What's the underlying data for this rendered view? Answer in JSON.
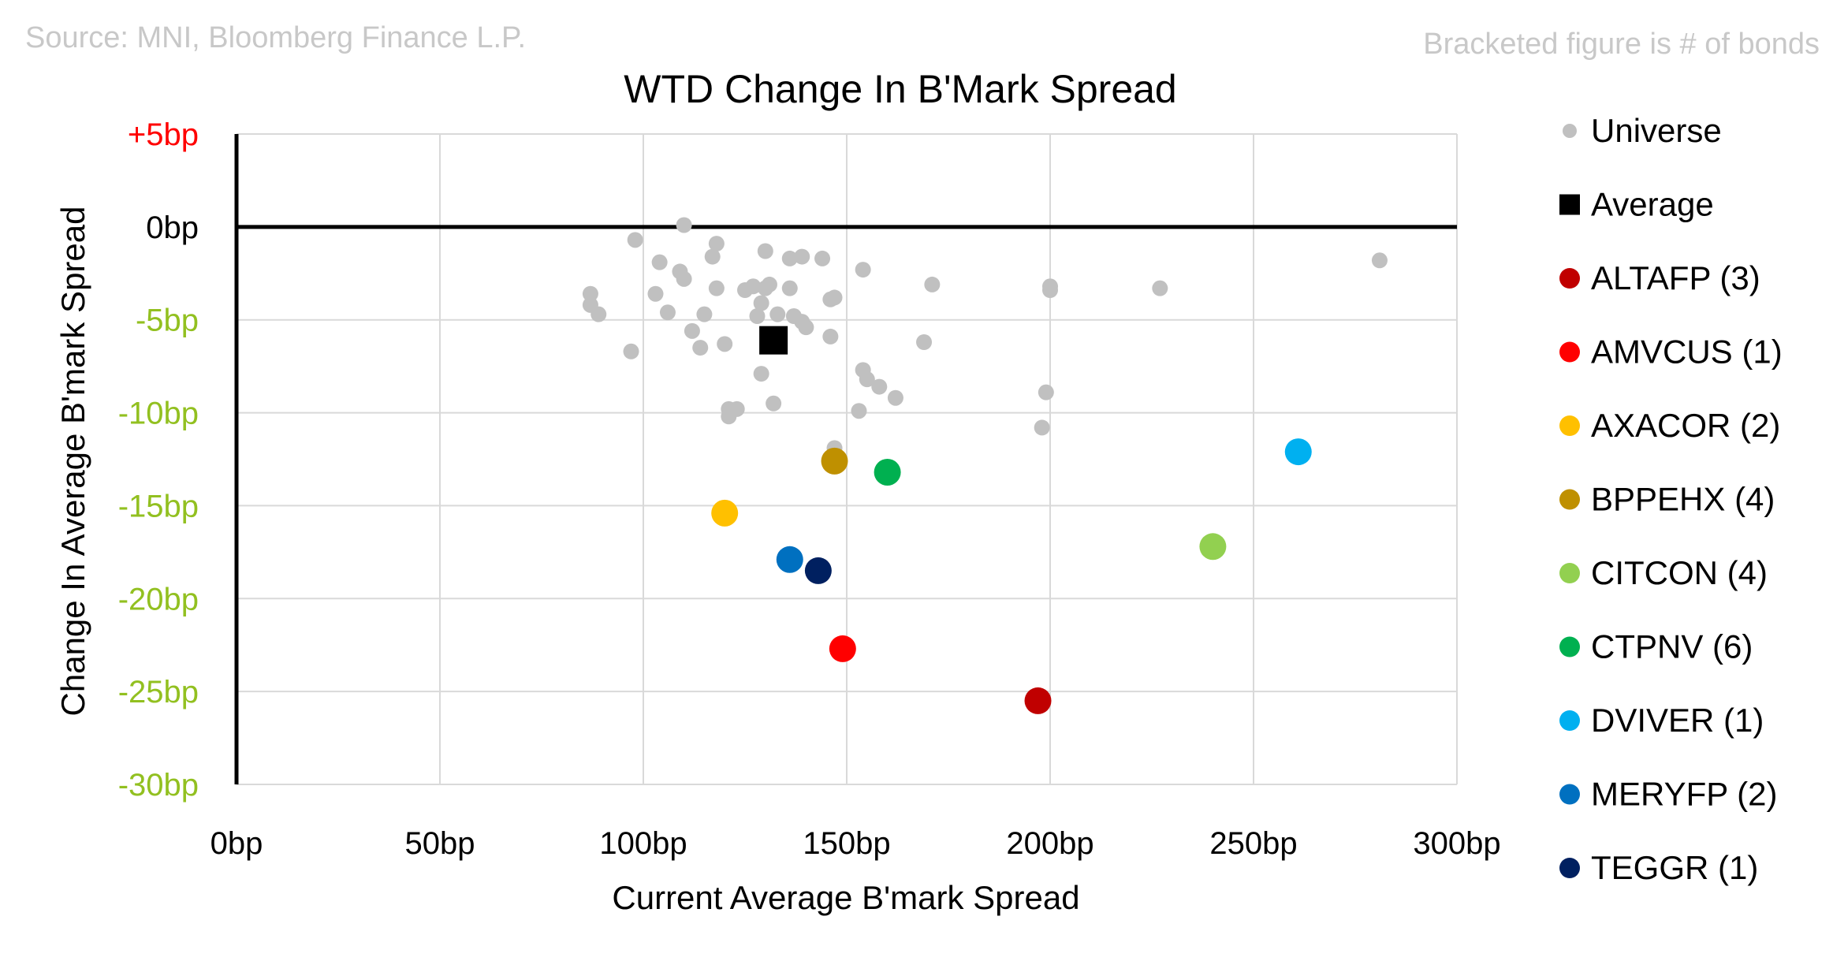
{
  "source_note": "Source: MNI, Bloomberg Finance L.P.",
  "bracket_note": "Bracketed figure is # of bonds",
  "colors": {
    "universe": "#c0c0c0",
    "average": "#000000",
    "positive_tick": "#ff0000",
    "zero_tick": "#000000",
    "negative_tick": "#92c020",
    "grid": "#d9d9d9"
  },
  "chart_data": {
    "type": "scatter",
    "title": "WTD Change In B'Mark Spread",
    "xlabel": "Current Average B'mark Spread",
    "ylabel": "Change In Average B'mark Spread",
    "xlim": [
      0,
      300
    ],
    "ylim": [
      -30,
      5
    ],
    "x_ticks": [
      {
        "value": 0,
        "label": "0bp"
      },
      {
        "value": 50,
        "label": "50bp"
      },
      {
        "value": 100,
        "label": "100bp"
      },
      {
        "value": 150,
        "label": "150bp"
      },
      {
        "value": 200,
        "label": "200bp"
      },
      {
        "value": 250,
        "label": "250bp"
      },
      {
        "value": 300,
        "label": "300bp"
      }
    ],
    "y_ticks": [
      {
        "value": 5,
        "label": "+5bp"
      },
      {
        "value": 0,
        "label": "0bp"
      },
      {
        "value": -5,
        "label": "-5bp"
      },
      {
        "value": -10,
        "label": "-10bp"
      },
      {
        "value": -15,
        "label": "-15bp"
      },
      {
        "value": -20,
        "label": "-20bp"
      },
      {
        "value": -25,
        "label": "-25bp"
      },
      {
        "value": -30,
        "label": "-30bp"
      }
    ],
    "legend_position": "right",
    "series": [
      {
        "name": "Universe",
        "marker": "circle",
        "color": "#c0c0c0",
        "legend_label": "Universe",
        "points": [
          [
            110,
            0.1
          ],
          [
            98,
            -0.7
          ],
          [
            118,
            -0.9
          ],
          [
            104,
            -1.9
          ],
          [
            117,
            -1.6
          ],
          [
            109,
            -2.4
          ],
          [
            110,
            -2.8
          ],
          [
            130,
            -1.3
          ],
          [
            136,
            -1.7
          ],
          [
            139,
            -1.6
          ],
          [
            144,
            -1.7
          ],
          [
            154,
            -2.3
          ],
          [
            171,
            -3.1
          ],
          [
            200,
            -3.2
          ],
          [
            200,
            -3.4
          ],
          [
            227,
            -3.3
          ],
          [
            281,
            -1.8
          ],
          [
            87,
            -3.6
          ],
          [
            87,
            -4.2
          ],
          [
            89,
            -4.7
          ],
          [
            103,
            -3.6
          ],
          [
            106,
            -4.6
          ],
          [
            112,
            -5.6
          ],
          [
            114,
            -6.5
          ],
          [
            115,
            -4.7
          ],
          [
            118,
            -3.3
          ],
          [
            120,
            -6.3
          ],
          [
            125,
            -3.4
          ],
          [
            127,
            -3.2
          ],
          [
            128,
            -4.8
          ],
          [
            129,
            -4.1
          ],
          [
            130,
            -3.3
          ],
          [
            131,
            -3.1
          ],
          [
            133,
            -4.7
          ],
          [
            136,
            -3.3
          ],
          [
            137,
            -4.8
          ],
          [
            139,
            -5.1
          ],
          [
            140,
            -5.4
          ],
          [
            146,
            -3.9
          ],
          [
            147,
            -3.8
          ],
          [
            146,
            -5.9
          ],
          [
            169,
            -6.2
          ],
          [
            97,
            -6.7
          ],
          [
            129,
            -7.9
          ],
          [
            154,
            -7.7
          ],
          [
            155,
            -8.2
          ],
          [
            158,
            -8.6
          ],
          [
            162,
            -9.2
          ],
          [
            199,
            -8.9
          ],
          [
            121,
            -9.8
          ],
          [
            121,
            -10.2
          ],
          [
            123,
            -9.8
          ],
          [
            132,
            -9.5
          ],
          [
            153,
            -9.9
          ],
          [
            198,
            -10.8
          ],
          [
            147,
            -11.9
          ],
          [
            147,
            -12.3
          ]
        ]
      },
      {
        "name": "Average",
        "marker": "square",
        "color": "#000000",
        "legend_label": "Average",
        "points": [
          [
            132,
            -6.1
          ]
        ]
      },
      {
        "name": "ALTAFP",
        "marker": "circle",
        "color": "#c00000",
        "legend_label": "ALTAFP  (3)",
        "points": [
          [
            197,
            -25.5
          ]
        ]
      },
      {
        "name": "AMVCUS",
        "marker": "circle",
        "color": "#ff0000",
        "legend_label": "AMVCUS  (1)",
        "points": [
          [
            149,
            -22.7
          ]
        ]
      },
      {
        "name": "AXACOR",
        "marker": "circle",
        "color": "#ffc000",
        "legend_label": "AXACOR  (2)",
        "points": [
          [
            120,
            -15.4
          ]
        ]
      },
      {
        "name": "BPPEHX",
        "marker": "circle",
        "color": "#bf9000",
        "legend_label": "BPPEHX  (4)",
        "points": [
          [
            147,
            -12.6
          ]
        ]
      },
      {
        "name": "CITCON",
        "marker": "circle",
        "color": "#92d050",
        "legend_label": "CITCON  (4)",
        "points": [
          [
            240,
            -17.2
          ]
        ]
      },
      {
        "name": "CTPNV",
        "marker": "circle",
        "color": "#00b050",
        "legend_label": "CTPNV  (6)",
        "points": [
          [
            160,
            -13.2
          ]
        ]
      },
      {
        "name": "DVIVER",
        "marker": "circle",
        "color": "#00b0f0",
        "legend_label": "DVIVER  (1)",
        "points": [
          [
            261,
            -12.1
          ]
        ]
      },
      {
        "name": "MERYFP",
        "marker": "circle",
        "color": "#0070c0",
        "legend_label": "MERYFP  (2)",
        "points": [
          [
            136,
            -17.9
          ]
        ]
      },
      {
        "name": "TEGGR",
        "marker": "circle",
        "color": "#002060",
        "legend_label": "TEGGR  (1)",
        "points": [
          [
            143,
            -18.5
          ]
        ]
      }
    ]
  }
}
